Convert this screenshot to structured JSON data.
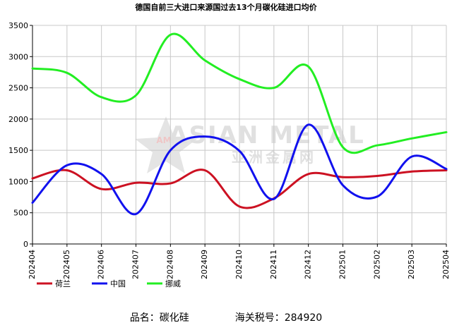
{
  "chart_data": {
    "type": "line",
    "title": "德国自前三大进口来源国过去13个月碳化硅进口均价",
    "xlabel": "",
    "ylabel": "",
    "categories": [
      "202404",
      "202405",
      "202406",
      "202407",
      "202408",
      "202409",
      "202410",
      "202411",
      "202412",
      "202501",
      "202502",
      "202503",
      "202504"
    ],
    "ylim": [
      0,
      3500
    ],
    "yticks": [
      0,
      500,
      1000,
      1500,
      2000,
      2500,
      3000,
      3500
    ],
    "grid": true,
    "legend_position": "bottom-left",
    "series": [
      {
        "name": "荷兰",
        "color": "#cc1122",
        "values": [
          1050,
          1180,
          880,
          980,
          970,
          1180,
          600,
          730,
          1120,
          1070,
          1090,
          1160,
          1180
        ]
      },
      {
        "name": "中国",
        "color": "#1111ee",
        "values": [
          660,
          1260,
          1120,
          480,
          1500,
          1720,
          1490,
          720,
          1910,
          940,
          760,
          1400,
          1200
        ]
      },
      {
        "name": "挪威",
        "color": "#22ee22",
        "values": [
          2810,
          2740,
          2350,
          2380,
          3350,
          2940,
          2640,
          2500,
          2840,
          1550,
          1580,
          1690,
          1790
        ]
      }
    ]
  },
  "watermark": {
    "text_en": "ASIAN METAL",
    "text_cn": "亚洲金属网",
    "logo": "AM"
  },
  "footer": {
    "product_label": "品名：碳化硅",
    "tariff_label": "海关税号：284920"
  }
}
